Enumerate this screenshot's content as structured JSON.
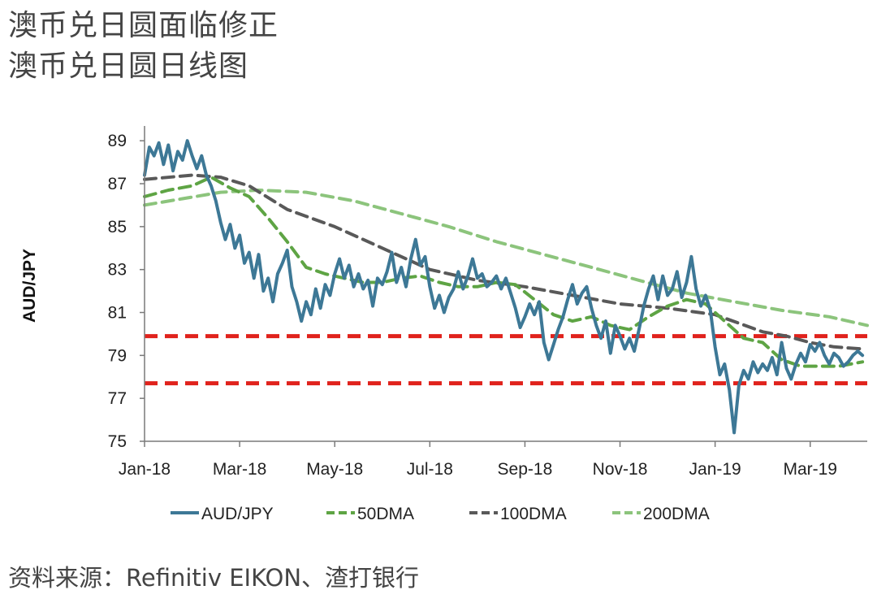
{
  "header": {
    "title_line1": "澳币兑日圆面临修正",
    "title_line2": "澳币兑日圆日线图"
  },
  "footer": {
    "source": "资料来源：Refinitiv EIKON、渣打银行"
  },
  "colors": {
    "audjpy": "#3d7896",
    "dma50": "#5ea444",
    "dma100": "#595959",
    "dma200": "#8cc47c",
    "support": "#e0221c"
  },
  "chart_data": {
    "type": "line",
    "ylabel": "AUD/JPY",
    "xlabel": "",
    "ylim": [
      75,
      89.5
    ],
    "yticks": [
      75,
      77,
      79,
      81,
      83,
      85,
      87,
      89
    ],
    "xlim": [
      0,
      15.2
    ],
    "xticks": [
      {
        "x": 0,
        "label": "Jan-18"
      },
      {
        "x": 2,
        "label": "Mar-18"
      },
      {
        "x": 4,
        "label": "May-18"
      },
      {
        "x": 6,
        "label": "Jul-18"
      },
      {
        "x": 8,
        "label": "Sep-18"
      },
      {
        "x": 10,
        "label": "Nov-18"
      },
      {
        "x": 12,
        "label": "Jan-19"
      },
      {
        "x": 14,
        "label": "Mar-19"
      }
    ],
    "hlines": [
      {
        "y": 79.9,
        "style": "dashed"
      },
      {
        "y": 77.7,
        "style": "dashed"
      }
    ],
    "series": [
      {
        "name": "AUD/JPY",
        "style": "solid",
        "points": [
          [
            0.0,
            87.4
          ],
          [
            0.1,
            88.7
          ],
          [
            0.2,
            88.3
          ],
          [
            0.3,
            88.9
          ],
          [
            0.4,
            87.9
          ],
          [
            0.5,
            88.8
          ],
          [
            0.6,
            87.6
          ],
          [
            0.7,
            88.5
          ],
          [
            0.8,
            88.1
          ],
          [
            0.9,
            89.0
          ],
          [
            1.0,
            88.3
          ],
          [
            1.1,
            87.7
          ],
          [
            1.2,
            88.3
          ],
          [
            1.3,
            87.4
          ],
          [
            1.4,
            86.9
          ],
          [
            1.5,
            86.2
          ],
          [
            1.6,
            85.2
          ],
          [
            1.7,
            84.4
          ],
          [
            1.8,
            85.1
          ],
          [
            1.9,
            84.0
          ],
          [
            2.0,
            84.6
          ],
          [
            2.1,
            83.3
          ],
          [
            2.2,
            83.8
          ],
          [
            2.3,
            82.6
          ],
          [
            2.4,
            83.7
          ],
          [
            2.5,
            82.0
          ],
          [
            2.6,
            82.6
          ],
          [
            2.7,
            81.5
          ],
          [
            2.8,
            82.8
          ],
          [
            2.9,
            83.3
          ],
          [
            3.0,
            83.9
          ],
          [
            3.1,
            82.2
          ],
          [
            3.2,
            81.5
          ],
          [
            3.3,
            80.6
          ],
          [
            3.4,
            81.5
          ],
          [
            3.5,
            80.9
          ],
          [
            3.6,
            82.1
          ],
          [
            3.7,
            81.2
          ],
          [
            3.8,
            82.3
          ],
          [
            3.9,
            81.8
          ],
          [
            4.0,
            82.8
          ],
          [
            4.1,
            83.5
          ],
          [
            4.2,
            82.6
          ],
          [
            4.3,
            83.2
          ],
          [
            4.4,
            82.2
          ],
          [
            4.5,
            82.8
          ],
          [
            4.6,
            82.1
          ],
          [
            4.7,
            82.5
          ],
          [
            4.8,
            81.3
          ],
          [
            4.9,
            82.6
          ],
          [
            5.0,
            82.3
          ],
          [
            5.1,
            82.9
          ],
          [
            5.2,
            83.8
          ],
          [
            5.3,
            82.4
          ],
          [
            5.4,
            83.1
          ],
          [
            5.5,
            82.2
          ],
          [
            5.6,
            83.5
          ],
          [
            5.7,
            84.4
          ],
          [
            5.8,
            83.2
          ],
          [
            5.9,
            83.6
          ],
          [
            6.0,
            82.2
          ],
          [
            6.1,
            81.2
          ],
          [
            6.2,
            81.8
          ],
          [
            6.3,
            81.0
          ],
          [
            6.4,
            81.7
          ],
          [
            6.5,
            82.1
          ],
          [
            6.6,
            82.9
          ],
          [
            6.7,
            82.1
          ],
          [
            6.8,
            82.7
          ],
          [
            6.9,
            83.5
          ],
          [
            7.0,
            82.6
          ],
          [
            7.1,
            82.8
          ],
          [
            7.2,
            82.2
          ],
          [
            7.3,
            82.4
          ],
          [
            7.4,
            82.7
          ],
          [
            7.5,
            82.1
          ],
          [
            7.6,
            82.6
          ],
          [
            7.7,
            81.9
          ],
          [
            7.8,
            81.2
          ],
          [
            7.9,
            80.3
          ],
          [
            8.0,
            80.8
          ],
          [
            8.1,
            81.4
          ],
          [
            8.2,
            80.9
          ],
          [
            8.3,
            81.5
          ],
          [
            8.4,
            79.6
          ],
          [
            8.5,
            78.8
          ],
          [
            8.6,
            79.5
          ],
          [
            8.7,
            80.2
          ],
          [
            8.8,
            80.8
          ],
          [
            8.9,
            81.6
          ],
          [
            9.0,
            82.3
          ],
          [
            9.1,
            81.4
          ],
          [
            9.2,
            81.9
          ],
          [
            9.3,
            82.2
          ],
          [
            9.4,
            81.2
          ],
          [
            9.5,
            80.4
          ],
          [
            9.6,
            79.8
          ],
          [
            9.7,
            80.6
          ],
          [
            9.8,
            79.1
          ],
          [
            9.9,
            80.4
          ],
          [
            10.0,
            79.9
          ],
          [
            10.1,
            79.3
          ],
          [
            10.2,
            79.8
          ],
          [
            10.3,
            79.2
          ],
          [
            10.4,
            80.2
          ],
          [
            10.5,
            81.3
          ],
          [
            10.6,
            82.1
          ],
          [
            10.7,
            82.7
          ],
          [
            10.8,
            81.6
          ],
          [
            10.9,
            82.7
          ],
          [
            11.0,
            81.8
          ],
          [
            11.1,
            82.1
          ],
          [
            11.2,
            82.9
          ],
          [
            11.3,
            81.7
          ],
          [
            11.4,
            82.4
          ],
          [
            11.5,
            83.6
          ],
          [
            11.6,
            82.1
          ],
          [
            11.7,
            81.3
          ],
          [
            11.8,
            81.8
          ],
          [
            11.9,
            81.1
          ],
          [
            12.0,
            79.4
          ],
          [
            12.1,
            78.1
          ],
          [
            12.2,
            78.6
          ],
          [
            12.3,
            77.4
          ],
          [
            12.4,
            75.4
          ],
          [
            12.5,
            77.6
          ],
          [
            12.6,
            78.3
          ],
          [
            12.7,
            77.9
          ],
          [
            12.8,
            78.7
          ],
          [
            12.9,
            78.2
          ],
          [
            13.0,
            78.6
          ],
          [
            13.1,
            78.3
          ],
          [
            13.2,
            78.9
          ],
          [
            13.3,
            78.1
          ],
          [
            13.4,
            79.6
          ],
          [
            13.5,
            78.4
          ],
          [
            13.6,
            77.9
          ],
          [
            13.7,
            78.6
          ],
          [
            13.8,
            79.1
          ],
          [
            13.9,
            78.7
          ],
          [
            14.0,
            79.5
          ],
          [
            14.1,
            79.2
          ],
          [
            14.2,
            79.6
          ],
          [
            14.3,
            79.0
          ],
          [
            14.4,
            78.6
          ],
          [
            14.5,
            79.1
          ],
          [
            14.6,
            78.9
          ],
          [
            14.7,
            78.5
          ],
          [
            14.8,
            78.7
          ],
          [
            14.9,
            79.0
          ],
          [
            15.0,
            79.2
          ],
          [
            15.1,
            79.0
          ]
        ]
      },
      {
        "name": "50DMA",
        "style": "dashed",
        "points": [
          [
            0.0,
            86.4
          ],
          [
            0.5,
            86.7
          ],
          [
            1.0,
            86.9
          ],
          [
            1.4,
            87.3
          ],
          [
            1.8,
            86.8
          ],
          [
            2.2,
            86.4
          ],
          [
            2.6,
            85.4
          ],
          [
            3.0,
            84.3
          ],
          [
            3.4,
            83.1
          ],
          [
            3.8,
            82.8
          ],
          [
            4.2,
            82.6
          ],
          [
            4.6,
            82.4
          ],
          [
            5.0,
            82.4
          ],
          [
            5.4,
            82.6
          ],
          [
            5.8,
            82.7
          ],
          [
            6.2,
            82.4
          ],
          [
            6.6,
            82.2
          ],
          [
            7.0,
            82.2
          ],
          [
            7.4,
            82.4
          ],
          [
            7.8,
            82.3
          ],
          [
            8.2,
            81.6
          ],
          [
            8.6,
            80.9
          ],
          [
            9.0,
            80.6
          ],
          [
            9.4,
            80.8
          ],
          [
            9.8,
            80.4
          ],
          [
            10.2,
            80.2
          ],
          [
            10.6,
            80.8
          ],
          [
            11.0,
            81.3
          ],
          [
            11.4,
            81.6
          ],
          [
            11.8,
            81.4
          ],
          [
            12.2,
            80.6
          ],
          [
            12.6,
            79.8
          ],
          [
            13.0,
            79.6
          ],
          [
            13.4,
            78.8
          ],
          [
            13.8,
            78.5
          ],
          [
            14.2,
            78.5
          ],
          [
            14.6,
            78.5
          ],
          [
            15.1,
            78.7
          ]
        ]
      },
      {
        "name": "100DMA",
        "style": "dashed",
        "points": [
          [
            0.0,
            87.2
          ],
          [
            1.0,
            87.4
          ],
          [
            1.6,
            87.3
          ],
          [
            2.2,
            86.9
          ],
          [
            3.0,
            85.8
          ],
          [
            4.0,
            85.0
          ],
          [
            5.0,
            84.0
          ],
          [
            6.0,
            83.0
          ],
          [
            7.0,
            82.5
          ],
          [
            8.0,
            82.2
          ],
          [
            9.0,
            81.8
          ],
          [
            10.0,
            81.4
          ],
          [
            11.0,
            81.2
          ],
          [
            12.0,
            80.9
          ],
          [
            12.5,
            80.5
          ],
          [
            13.0,
            80.1
          ],
          [
            13.5,
            79.9
          ],
          [
            14.0,
            79.6
          ],
          [
            14.5,
            79.4
          ],
          [
            15.1,
            79.3
          ]
        ]
      },
      {
        "name": "200DMA",
        "style": "dashed",
        "points": [
          [
            0.0,
            86.0
          ],
          [
            0.8,
            86.3
          ],
          [
            1.6,
            86.6
          ],
          [
            2.4,
            86.7
          ],
          [
            3.4,
            86.6
          ],
          [
            4.4,
            86.2
          ],
          [
            5.4,
            85.6
          ],
          [
            6.4,
            85.0
          ],
          [
            7.4,
            84.3
          ],
          [
            8.4,
            83.7
          ],
          [
            9.4,
            83.1
          ],
          [
            10.4,
            82.5
          ],
          [
            11.4,
            81.9
          ],
          [
            12.4,
            81.5
          ],
          [
            13.4,
            81.1
          ],
          [
            14.4,
            80.8
          ],
          [
            15.2,
            80.4
          ]
        ]
      }
    ],
    "legend": [
      "AUD/JPY",
      "50DMA",
      "100DMA",
      "200DMA"
    ],
    "legend_position": "bottom"
  }
}
